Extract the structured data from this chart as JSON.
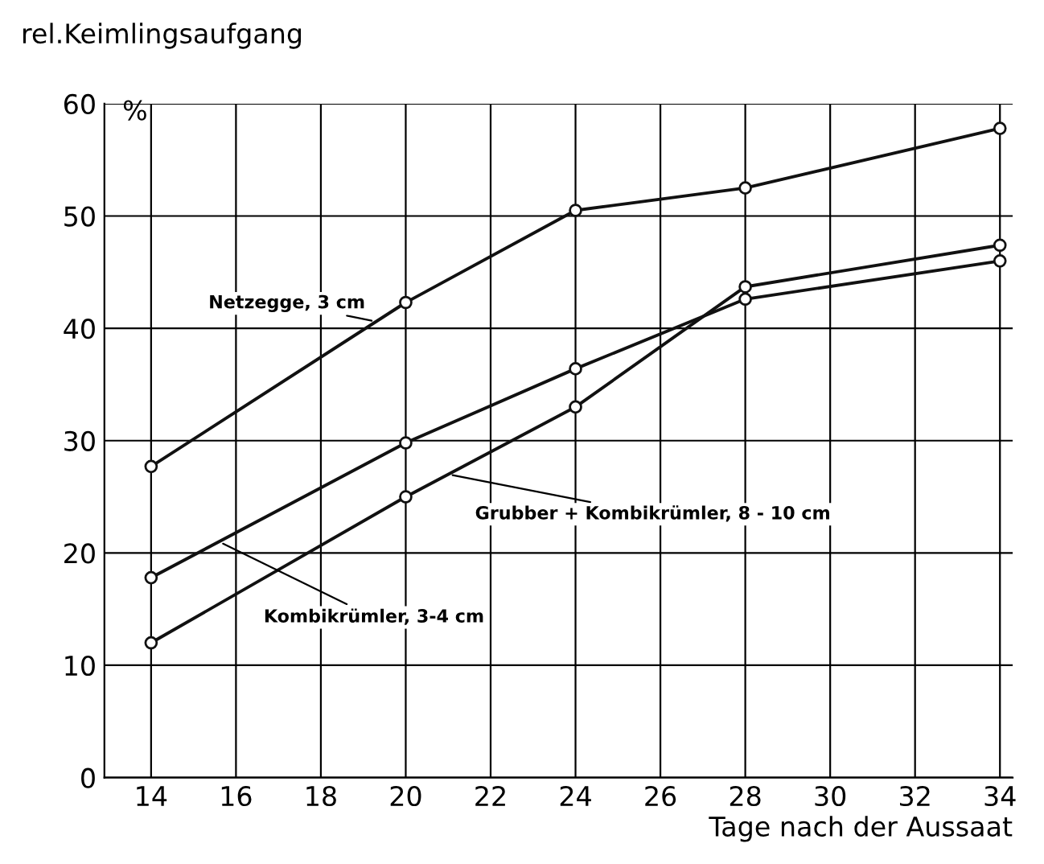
{
  "chart_data": {
    "type": "line",
    "ylabel": "rel.Keimlingsaufgang",
    "xlabel": "Tage nach der Aussaat",
    "annotations": [
      "%"
    ],
    "x": [
      14,
      20,
      24,
      28,
      34
    ],
    "series": [
      {
        "name": "Netzegge, 3 cm",
        "color": "#111111",
        "values": [
          27.7,
          42.3,
          50.5,
          52.5,
          57.8
        ]
      },
      {
        "name": "Kombikrümler, 3-4 cm",
        "color": "#111111",
        "values": [
          17.8,
          29.8,
          36.4,
          42.6,
          46.0
        ]
      },
      {
        "name": "Grubber + Kombikrümler, 8 - 10 cm",
        "color": "#111111",
        "values": [
          12.0,
          25.0,
          33.0,
          43.7,
          47.4
        ]
      }
    ],
    "xlim": [
      12.9,
      34.3
    ],
    "ylim": [
      0,
      60
    ],
    "xticks": [
      14,
      16,
      18,
      20,
      22,
      24,
      26,
      28,
      30,
      32,
      34
    ],
    "yticks": [
      0,
      10,
      20,
      30,
      40,
      50,
      60
    ],
    "grid": true,
    "legend": false,
    "marker": "circle",
    "line_style": "solid"
  }
}
